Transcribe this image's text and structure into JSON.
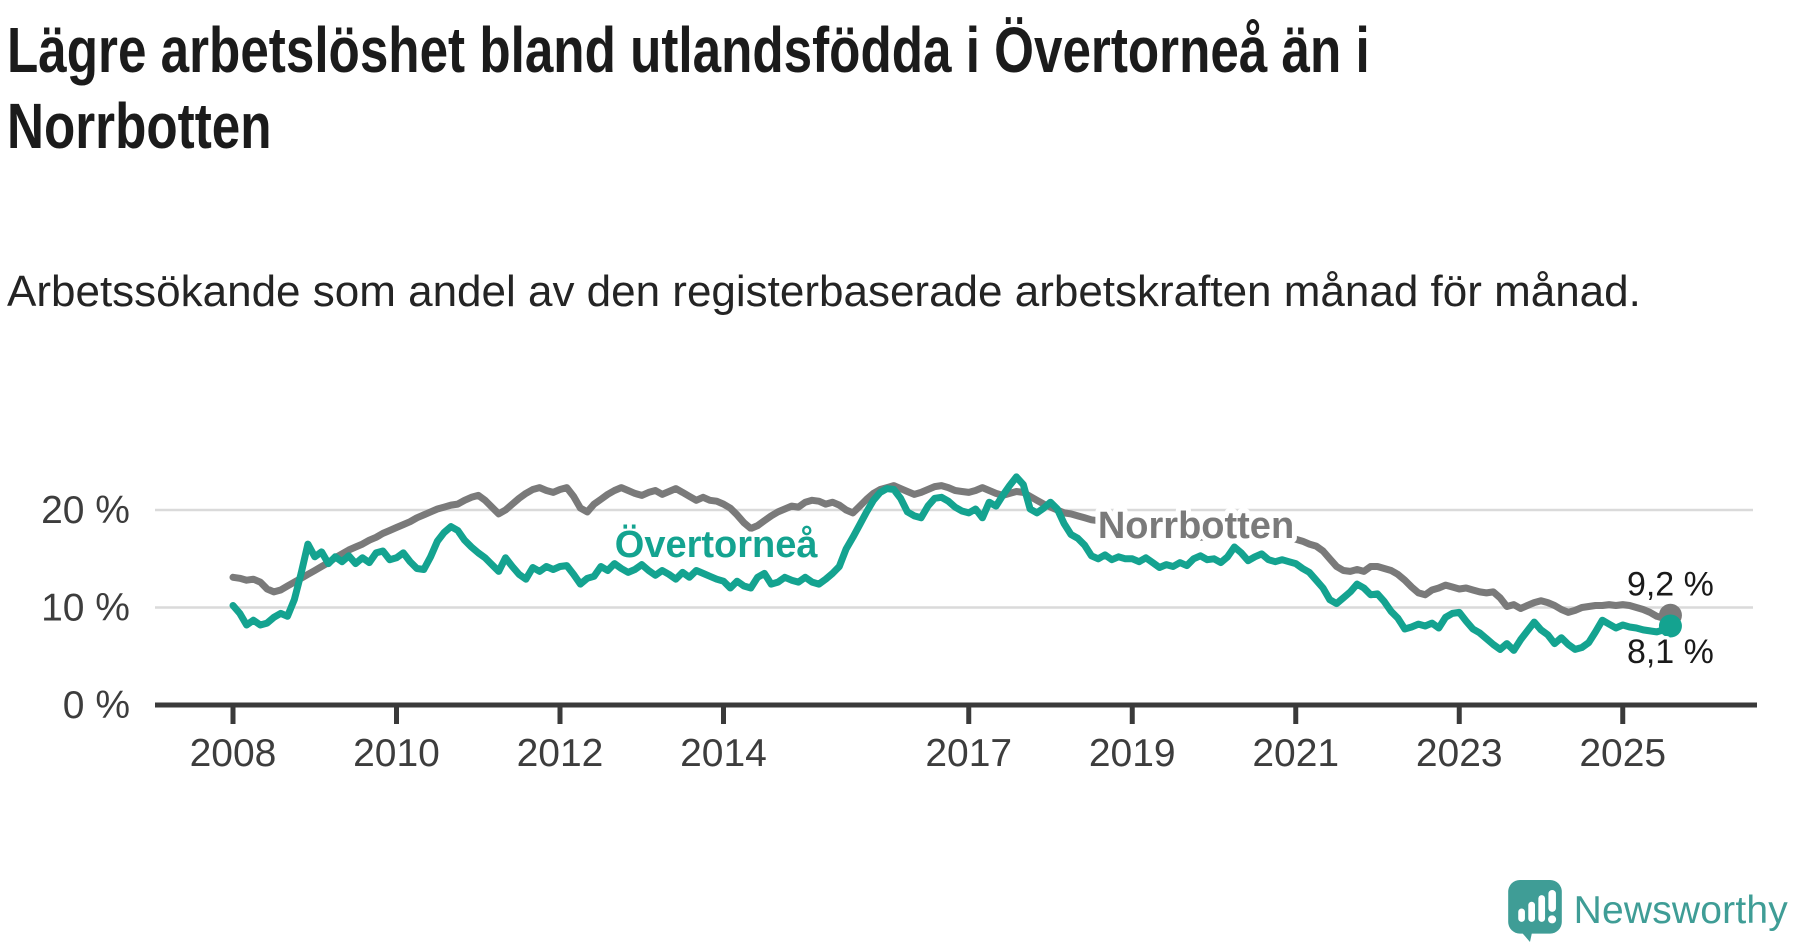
{
  "title": "Lägre arbetslöshet bland utlandsfödda i Övertorneå än i Norrbotten",
  "subtitle": "Arbetssökande som andel av den registerbaserade arbetskraften månad för månad.",
  "branding": {
    "name": "Newsworthy",
    "color": "#3f9d96",
    "icon": "speech-bubble-bar-chart"
  },
  "colors": {
    "focus_series": "#14a390",
    "comparison_series": "#7a7a7a",
    "axis": "#3a3a3a",
    "gridline": "#dadada",
    "tick_text": "#3d3d3d",
    "value_label_text": "#1a1a1a"
  },
  "chart_data": {
    "type": "line",
    "unit": "percent",
    "frequency": "monthly",
    "x_start": "2008-01",
    "x_end": "2025-08",
    "x_tick_years": [
      2008,
      2010,
      2012,
      2014,
      2017,
      2019,
      2021,
      2023,
      2025
    ],
    "x_tick_labels": [
      "2008",
      "2010",
      "2012",
      "2014",
      "2017",
      "2019",
      "2021",
      "2023",
      "2025"
    ],
    "y_ticks": [
      {
        "value": 0,
        "label": "0 %"
      },
      {
        "value": 10,
        "label": "10 %"
      },
      {
        "value": 20,
        "label": "20 %"
      }
    ],
    "ylim": [
      0,
      24.5
    ],
    "grid": "horizontal-only",
    "legend": "inline-labels",
    "series": [
      {
        "name": "Övertorneå",
        "color": "#14a390",
        "end_label": "8,1 %",
        "end_value": 8.1,
        "values": [
          10.2,
          9.4,
          8.2,
          8.7,
          8.2,
          8.4,
          9.0,
          9.4,
          9.1,
          10.8,
          13.5,
          16.5,
          15.2,
          15.7,
          14.5,
          15.2,
          14.7,
          15.3,
          14.5,
          15.1,
          14.6,
          15.6,
          15.8,
          14.9,
          15.1,
          15.6,
          14.7,
          14.0,
          13.9,
          15.2,
          16.8,
          17.7,
          18.3,
          17.9,
          16.9,
          16.2,
          15.6,
          15.1,
          14.4,
          13.7,
          15.1,
          14.2,
          13.4,
          12.9,
          14.1,
          13.7,
          14.2,
          13.9,
          14.2,
          14.3,
          13.4,
          12.4,
          13.0,
          13.2,
          14.2,
          13.8,
          14.5,
          14.0,
          13.6,
          13.9,
          14.4,
          13.8,
          13.3,
          13.8,
          13.4,
          12.9,
          13.6,
          13.1,
          13.8,
          13.5,
          13.2,
          12.9,
          12.7,
          12.0,
          12.7,
          12.2,
          12.0,
          13.1,
          13.5,
          12.4,
          12.6,
          13.1,
          12.8,
          12.6,
          13.1,
          12.6,
          12.4,
          12.9,
          13.5,
          14.2,
          16.0,
          17.2,
          18.5,
          19.8,
          21.0,
          21.8,
          22.2,
          22.1,
          21.2,
          19.8,
          19.4,
          19.2,
          20.4,
          21.2,
          21.3,
          20.9,
          20.3,
          19.9,
          19.7,
          20.1,
          19.2,
          20.8,
          20.4,
          21.5,
          22.5,
          23.4,
          22.6,
          20.1,
          19.7,
          20.2,
          20.8,
          20.1,
          18.6,
          17.5,
          17.1,
          16.4,
          15.3,
          15.0,
          15.4,
          14.9,
          15.2,
          15.0,
          15.0,
          14.7,
          15.1,
          14.6,
          14.1,
          14.4,
          14.2,
          14.6,
          14.3,
          15.0,
          15.3,
          14.9,
          15.0,
          14.6,
          15.2,
          16.2,
          15.6,
          14.8,
          15.2,
          15.5,
          14.9,
          14.7,
          14.9,
          14.7,
          14.5,
          14.0,
          13.6,
          12.8,
          12.0,
          10.8,
          10.4,
          11.0,
          11.6,
          12.4,
          12.0,
          11.3,
          11.4,
          10.6,
          9.6,
          8.9,
          7.8,
          8.0,
          8.3,
          8.1,
          8.4,
          7.9,
          9.0,
          9.4,
          9.5,
          8.6,
          7.8,
          7.4,
          6.8,
          6.2,
          5.7,
          6.3,
          5.6,
          6.7,
          7.6,
          8.5,
          7.7,
          7.2,
          6.3,
          6.9,
          6.2,
          5.7,
          5.9,
          6.4,
          7.5,
          8.7,
          8.3,
          7.9,
          8.2,
          8.0,
          7.9,
          7.7,
          7.6,
          7.5,
          7.7,
          8.1
        ]
      },
      {
        "name": "Norrbotten",
        "color": "#7a7a7a",
        "end_label": "9,2 %",
        "end_value": 9.2,
        "values": [
          13.1,
          13.0,
          12.8,
          12.9,
          12.6,
          11.9,
          11.6,
          11.8,
          12.2,
          12.6,
          13.0,
          13.4,
          13.8,
          14.2,
          14.6,
          15.1,
          15.5,
          15.9,
          16.2,
          16.5,
          16.9,
          17.2,
          17.6,
          17.9,
          18.2,
          18.5,
          18.8,
          19.2,
          19.5,
          19.8,
          20.1,
          20.3,
          20.5,
          20.6,
          21.0,
          21.3,
          21.5,
          21.0,
          20.3,
          19.6,
          20.0,
          20.6,
          21.2,
          21.7,
          22.1,
          22.3,
          22.0,
          21.8,
          22.1,
          22.3,
          21.4,
          20.2,
          19.8,
          20.6,
          21.1,
          21.6,
          22.0,
          22.3,
          22.0,
          21.7,
          21.5,
          21.8,
          22.0,
          21.6,
          21.9,
          22.2,
          21.8,
          21.4,
          21.0,
          21.3,
          21.0,
          20.9,
          20.6,
          20.2,
          19.5,
          18.7,
          18.1,
          18.4,
          18.9,
          19.4,
          19.8,
          20.1,
          20.4,
          20.3,
          20.8,
          21.0,
          20.9,
          20.6,
          20.8,
          20.5,
          20.0,
          19.7,
          20.4,
          21.1,
          21.7,
          22.1,
          22.3,
          22.5,
          22.2,
          21.9,
          21.6,
          21.8,
          22.1,
          22.4,
          22.5,
          22.3,
          22.0,
          21.9,
          21.8,
          22.0,
          22.3,
          22.0,
          21.7,
          21.5,
          21.7,
          21.9,
          21.8,
          21.4,
          21.0,
          20.6,
          20.3,
          20.0,
          19.7,
          19.6,
          19.4,
          19.2,
          19.0,
          18.9,
          18.8,
          18.6,
          18.4,
          18.2,
          18.0,
          17.8,
          17.9,
          17.7,
          17.5,
          17.6,
          17.4,
          17.5,
          17.3,
          17.4,
          17.2,
          17.3,
          17.5,
          17.7,
          18.0,
          18.6,
          18.9,
          18.7,
          18.5,
          18.3,
          18.0,
          17.8,
          17.6,
          17.4,
          17.0,
          16.8,
          16.5,
          16.3,
          15.8,
          15.0,
          14.2,
          13.8,
          13.7,
          13.9,
          13.7,
          14.2,
          14.2,
          14.0,
          13.8,
          13.4,
          12.8,
          12.1,
          11.5,
          11.3,
          11.8,
          12.0,
          12.3,
          12.1,
          11.9,
          12.0,
          11.8,
          11.6,
          11.5,
          11.6,
          11.0,
          10.1,
          10.3,
          9.9,
          10.2,
          10.5,
          10.7,
          10.5,
          10.2,
          9.8,
          9.5,
          9.7,
          10.0,
          10.1,
          10.2,
          10.2,
          10.3,
          10.2,
          10.3,
          10.2,
          10.0,
          9.8,
          9.5,
          9.1,
          8.9,
          9.2
        ]
      }
    ],
    "series_annotations": [
      {
        "series": "Övertorneå",
        "text": "Övertorneå",
        "x_year": 2013.91,
        "y_pct": 15.18
      },
      {
        "series": "Norrbotten",
        "text": "Norrbotten",
        "x_year": 2019.78,
        "y_pct": 17.13
      }
    ]
  }
}
